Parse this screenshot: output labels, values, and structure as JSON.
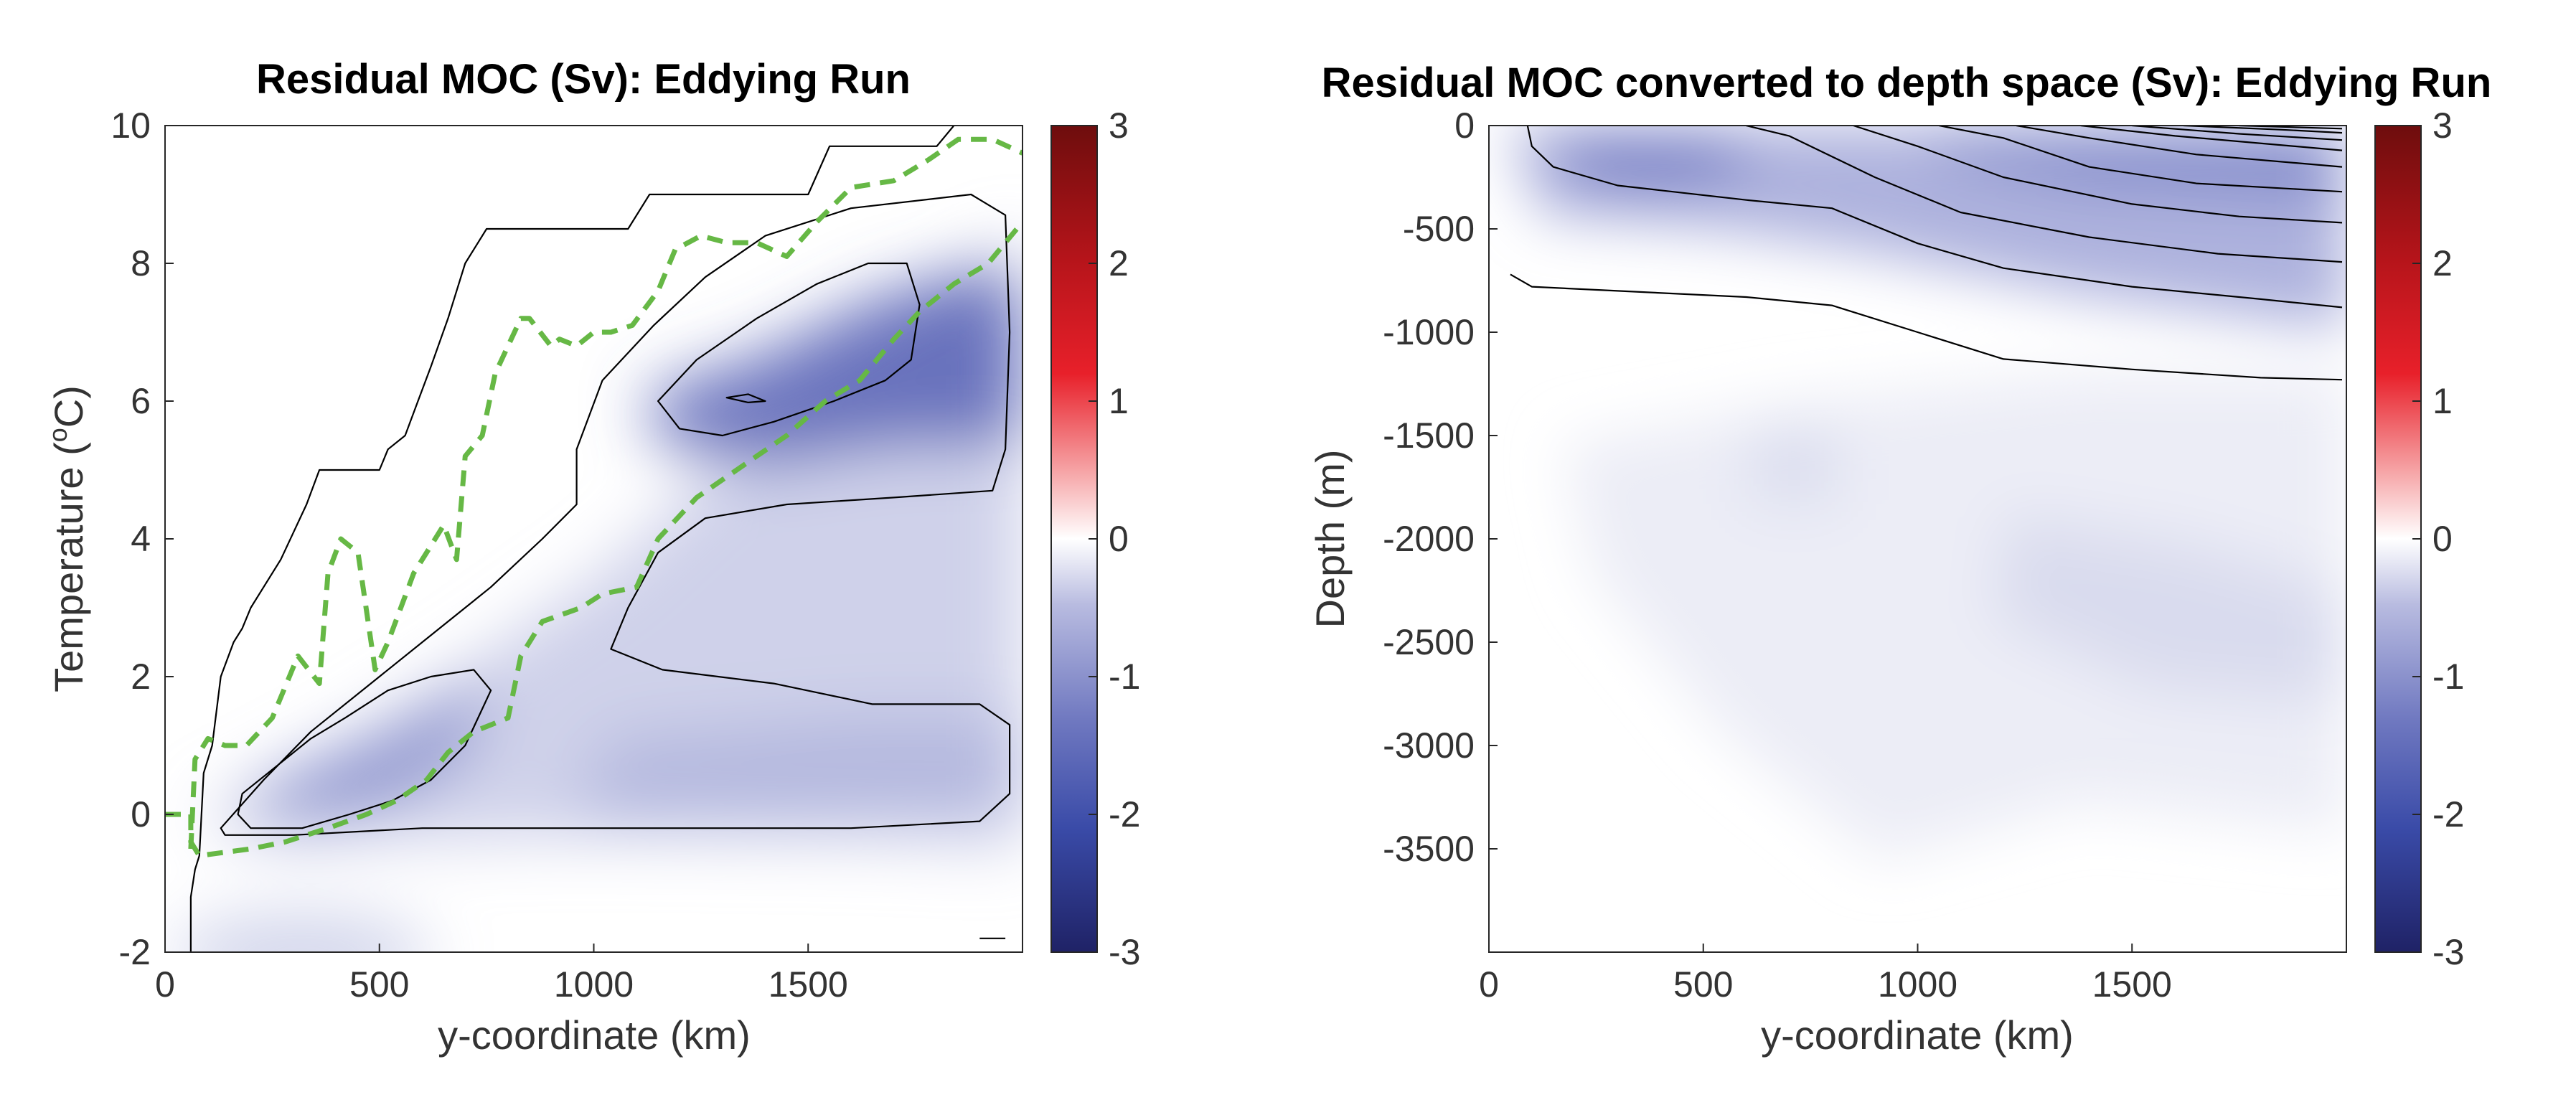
{
  "colors": {
    "negative_dark": "#1f2266",
    "negative_mid": "#3a4ba8",
    "neutral": "#ffffff",
    "positive_mid": "#e8202a",
    "positive_dark": "#6e0d0d",
    "contour_line": "#000000",
    "dashed_line": "#66b845"
  },
  "chart_data": [
    {
      "type": "heatmap",
      "title": "Residual MOC (Sv): Eddying Run",
      "xlabel": "y-coordinate (km)",
      "ylabel_main": "Temperature (",
      "ylabel_sup": "o",
      "ylabel_end": "C)",
      "xlim": [
        0,
        2000
      ],
      "ylim": [
        -2,
        10
      ],
      "xticks": [
        "0",
        "500",
        "1000",
        "1500"
      ],
      "xtick_values": [
        0,
        500,
        1000,
        1500
      ],
      "yticks": [
        "-2",
        "0",
        "2",
        "4",
        "6",
        "8",
        "10"
      ],
      "ytick_values": [
        -2,
        0,
        2,
        4,
        6,
        8,
        10
      ],
      "colorbar": {
        "clim": [
          -3,
          3
        ],
        "ticks": [
          "3",
          "2",
          "1",
          "0",
          "-1",
          "-2",
          "-3"
        ],
        "tick_values": [
          3,
          2,
          1,
          0,
          -1,
          -2,
          -3
        ]
      },
      "minima": [
        {
          "x": 520,
          "y": 0.9,
          "value": -1.7
        },
        {
          "x": 1450,
          "y": 6.3,
          "value": -2.0
        },
        {
          "x": 1650,
          "y": 0.8,
          "value": -0.9
        }
      ],
      "contours": [
        {
          "points": [
            [
              60,
              -2
            ],
            [
              60,
              -1.2
            ],
            [
              70,
              -0.8
            ],
            [
              80,
              -0.6
            ],
            [
              90,
              0.6
            ],
            [
              110,
              1.0
            ],
            [
              130,
              2.0
            ],
            [
              160,
              2.5
            ],
            [
              180,
              2.7
            ],
            [
              200,
              3.0
            ],
            [
              230,
              3.3
            ],
            [
              270,
              3.7
            ],
            [
              330,
              4.5
            ],
            [
              360,
              5.0
            ],
            [
              500,
              5.0
            ],
            [
              520,
              5.3
            ],
            [
              560,
              5.5
            ],
            [
              590,
              6.0
            ],
            [
              620,
              6.5
            ],
            [
              660,
              7.2
            ],
            [
              700,
              8.0
            ],
            [
              750,
              8.5
            ],
            [
              1080,
              8.5
            ],
            [
              1130,
              9.0
            ],
            [
              1500,
              9.0
            ],
            [
              1550,
              9.7
            ],
            [
              1800,
              9.7
            ],
            [
              1840,
              10.0
            ]
          ],
          "closed": false
        },
        {
          "points": [
            [
              180,
              0.3
            ],
            [
              260,
              0.7
            ],
            [
              340,
              1.1
            ],
            [
              420,
              1.4
            ],
            [
              520,
              1.8
            ],
            [
              620,
              2.0
            ],
            [
              720,
              2.1
            ],
            [
              760,
              1.8
            ],
            [
              700,
              1.0
            ],
            [
              620,
              0.5
            ],
            [
              530,
              0.2
            ],
            [
              430,
              0.0
            ],
            [
              320,
              -0.2
            ],
            [
              200,
              -0.2
            ],
            [
              170,
              0.0
            ]
          ],
          "closed": true
        },
        {
          "points": [
            [
              130,
              -0.2
            ],
            [
              230,
              0.5
            ],
            [
              340,
              1.2
            ],
            [
              480,
              1.9
            ],
            [
              620,
              2.6
            ],
            [
              760,
              3.3
            ],
            [
              880,
              4.0
            ],
            [
              960,
              4.5
            ],
            [
              960,
              5.3
            ],
            [
              1020,
              6.3
            ],
            [
              1140,
              7.1
            ],
            [
              1260,
              7.8
            ],
            [
              1400,
              8.4
            ],
            [
              1600,
              8.8
            ],
            [
              1880,
              9.0
            ],
            [
              1960,
              8.7
            ],
            [
              1970,
              7.0
            ],
            [
              1960,
              5.3
            ],
            [
              1930,
              4.7
            ],
            [
              1700,
              4.6
            ],
            [
              1450,
              4.5
            ],
            [
              1260,
              4.3
            ],
            [
              1150,
              3.8
            ],
            [
              1080,
              3.0
            ],
            [
              1040,
              2.4
            ],
            [
              1160,
              2.1
            ],
            [
              1420,
              1.9
            ],
            [
              1650,
              1.6
            ],
            [
              1900,
              1.6
            ],
            [
              1970,
              1.3
            ],
            [
              1970,
              0.3
            ],
            [
              1900,
              -0.1
            ],
            [
              1600,
              -0.2
            ],
            [
              1000,
              -0.2
            ],
            [
              600,
              -0.2
            ],
            [
              300,
              -0.3
            ],
            [
              140,
              -0.3
            ]
          ],
          "closed": true
        },
        {
          "points": [
            [
              1150,
              6.0
            ],
            [
              1240,
              6.6
            ],
            [
              1380,
              7.2
            ],
            [
              1520,
              7.7
            ],
            [
              1640,
              8.0
            ],
            [
              1730,
              8.0
            ],
            [
              1760,
              7.4
            ],
            [
              1740,
              6.6
            ],
            [
              1680,
              6.3
            ],
            [
              1560,
              6.0
            ],
            [
              1420,
              5.7
            ],
            [
              1300,
              5.5
            ],
            [
              1200,
              5.6
            ]
          ],
          "closed": true
        },
        {
          "points": [
            [
              1310,
              6.05
            ],
            [
              1360,
              6.1
            ],
            [
              1400,
              6.0
            ],
            [
              1360,
              5.98
            ]
          ],
          "closed": true
        },
        {
          "points": [
            [
              1900,
              -1.8
            ],
            [
              1960,
              -1.8
            ]
          ],
          "closed": false
        }
      ],
      "dashed_lines": [
        {
          "points": [
            [
              0,
              0
            ],
            [
              60,
              0
            ],
            [
              60,
              -0.4
            ],
            [
              80,
              -0.6
            ],
            [
              200,
              -0.5
            ],
            [
              280,
              -0.4
            ],
            [
              380,
              -0.2
            ],
            [
              470,
              0
            ],
            [
              540,
              0.2
            ],
            [
              610,
              0.5
            ],
            [
              660,
              0.9
            ],
            [
              720,
              1.2
            ],
            [
              800,
              1.4
            ],
            [
              830,
              2.3
            ],
            [
              880,
              2.8
            ],
            [
              970,
              3.0
            ],
            [
              1020,
              3.2
            ],
            [
              1100,
              3.3
            ],
            [
              1150,
              4.0
            ],
            [
              1240,
              4.6
            ],
            [
              1310,
              4.9
            ],
            [
              1380,
              5.2
            ],
            [
              1450,
              5.5
            ],
            [
              1540,
              6.0
            ],
            [
              1620,
              6.3
            ],
            [
              1700,
              6.9
            ],
            [
              1760,
              7.3
            ],
            [
              1840,
              7.7
            ],
            [
              1920,
              8.0
            ],
            [
              2000,
              8.6
            ]
          ],
          "closed": false
        },
        {
          "points": [
            [
              60,
              -0.5
            ],
            [
              70,
              0.8
            ],
            [
              100,
              1.1
            ],
            [
              140,
              1.0
            ],
            [
              190,
              1.0
            ],
            [
              250,
              1.4
            ],
            [
              290,
              2.0
            ],
            [
              310,
              2.3
            ],
            [
              360,
              1.9
            ],
            [
              380,
              3.5
            ],
            [
              410,
              4.0
            ],
            [
              450,
              3.8
            ],
            [
              490,
              2.1
            ],
            [
              520,
              2.5
            ],
            [
              580,
              3.5
            ],
            [
              620,
              3.9
            ],
            [
              650,
              4.2
            ],
            [
              680,
              3.7
            ],
            [
              700,
              5.2
            ],
            [
              740,
              5.5
            ],
            [
              770,
              6.4
            ],
            [
              800,
              6.8
            ],
            [
              830,
              7.2
            ],
            [
              850,
              7.2
            ],
            [
              900,
              6.8
            ],
            [
              920,
              6.9
            ],
            [
              960,
              6.8
            ],
            [
              1000,
              7.0
            ],
            [
              1040,
              7.0
            ],
            [
              1090,
              7.1
            ],
            [
              1150,
              7.6
            ],
            [
              1190,
              8.2
            ],
            [
              1250,
              8.4
            ],
            [
              1310,
              8.3
            ],
            [
              1380,
              8.3
            ],
            [
              1450,
              8.1
            ],
            [
              1520,
              8.6
            ],
            [
              1600,
              9.1
            ],
            [
              1700,
              9.2
            ],
            [
              1780,
              9.5
            ],
            [
              1850,
              9.8
            ],
            [
              1930,
              9.8
            ],
            [
              2000,
              9.6
            ]
          ],
          "closed": false
        }
      ]
    },
    {
      "type": "heatmap",
      "title": "Residual MOC converted to depth space (Sv): Eddying Run",
      "xlabel": "y-coordinate (km)",
      "ylabel": "Depth (m)",
      "xlim": [
        0,
        2000
      ],
      "ylim": [
        -4000,
        0
      ],
      "xticks": [
        "0",
        "500",
        "1000",
        "1500"
      ],
      "xtick_values": [
        0,
        500,
        1000,
        1500
      ],
      "yticks": [
        "0",
        "-500",
        "-1000",
        "-1500",
        "-2000",
        "-2500",
        "-3000",
        "-3500"
      ],
      "ytick_values": [
        0,
        -500,
        -1000,
        -1500,
        -2000,
        -2500,
        -3000,
        -3500
      ],
      "colorbar": {
        "clim": [
          -3,
          3
        ],
        "ticks": [
          "3",
          "2",
          "1",
          "0",
          "-1",
          "-2",
          "-3"
        ],
        "tick_values": [
          3,
          2,
          1,
          0,
          -1,
          -2,
          -3
        ]
      },
      "minima": [
        {
          "x": 330,
          "y": -150,
          "value": -1.2
        },
        {
          "x": 1300,
          "y": -300,
          "value": -0.9
        },
        {
          "x": 1400,
          "y": -1900,
          "value": -0.25
        },
        {
          "x": 700,
          "y": -1600,
          "value": -0.15
        }
      ],
      "contours": [
        {
          "points": [
            [
              50,
              -720
            ],
            [
              100,
              -780
            ],
            [
              300,
              -800
            ],
            [
              600,
              -830
            ],
            [
              800,
              -870
            ],
            [
              1000,
              -1000
            ],
            [
              1200,
              -1130
            ],
            [
              1500,
              -1180
            ],
            [
              1800,
              -1220
            ],
            [
              1990,
              -1230
            ]
          ],
          "closed": false
        },
        {
          "points": [
            [
              90,
              0
            ],
            [
              100,
              -100
            ],
            [
              150,
              -200
            ],
            [
              300,
              -290
            ],
            [
              600,
              -360
            ],
            [
              800,
              -400
            ],
            [
              1000,
              -570
            ],
            [
              1200,
              -690
            ],
            [
              1500,
              -780
            ],
            [
              1800,
              -840
            ],
            [
              1990,
              -880
            ]
          ],
          "closed": false
        },
        {
          "points": [
            [
              600,
              0
            ],
            [
              700,
              -50
            ],
            [
              900,
              -250
            ],
            [
              1100,
              -420
            ],
            [
              1400,
              -540
            ],
            [
              1700,
              -620
            ],
            [
              1990,
              -660
            ]
          ],
          "closed": false
        },
        {
          "points": [
            [
              850,
              0
            ],
            [
              1000,
              -100
            ],
            [
              1200,
              -250
            ],
            [
              1500,
              -380
            ],
            [
              1750,
              -440
            ],
            [
              1990,
              -470
            ]
          ],
          "closed": false
        },
        {
          "points": [
            [
              1050,
              0
            ],
            [
              1200,
              -60
            ],
            [
              1400,
              -200
            ],
            [
              1650,
              -280
            ],
            [
              1990,
              -320
            ]
          ],
          "closed": false
        },
        {
          "points": [
            [
              1230,
              0
            ],
            [
              1400,
              -60
            ],
            [
              1650,
              -140
            ],
            [
              1990,
              -200
            ]
          ],
          "closed": false
        },
        {
          "points": [
            [
              1380,
              0
            ],
            [
              1600,
              -50
            ],
            [
              1990,
              -120
            ]
          ],
          "closed": false
        },
        {
          "points": [
            [
              1500,
              0
            ],
            [
              1750,
              -40
            ],
            [
              1990,
              -70
            ]
          ],
          "closed": false
        },
        {
          "points": [
            [
              1620,
              0
            ],
            [
              1850,
              -20
            ],
            [
              1990,
              -35
            ]
          ],
          "closed": false
        },
        {
          "points": [
            [
              1750,
              0
            ],
            [
              1990,
              -15
            ]
          ],
          "closed": false
        }
      ],
      "dashed_lines": []
    }
  ]
}
